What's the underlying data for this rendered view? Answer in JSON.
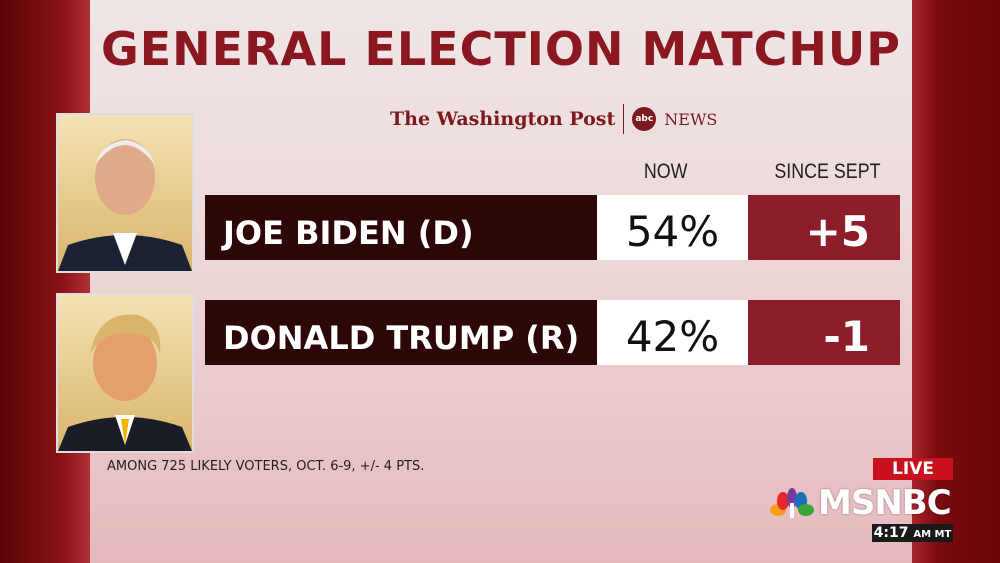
{
  "title": "GENERAL ELECTION MATCHUP",
  "sources": {
    "wapo": "The Washington Post",
    "abc": "abc",
    "news": "NEWS"
  },
  "headers": {
    "now": "NOW",
    "since": "SINCE SEPT"
  },
  "candidates": [
    {
      "name": "JOE BIDEN (D)",
      "now": "54%",
      "change": "+5"
    },
    {
      "name": "DONALD TRUMP (R)",
      "now": "42%",
      "change": "-1"
    }
  ],
  "footnote": "AMONG 725 LIKELY VOTERS, OCT. 6-9, +/- 4 PTS.",
  "bug": {
    "live": "LIVE",
    "network": "MSNBC",
    "time": "4:17",
    "zone": "AM MT"
  }
}
